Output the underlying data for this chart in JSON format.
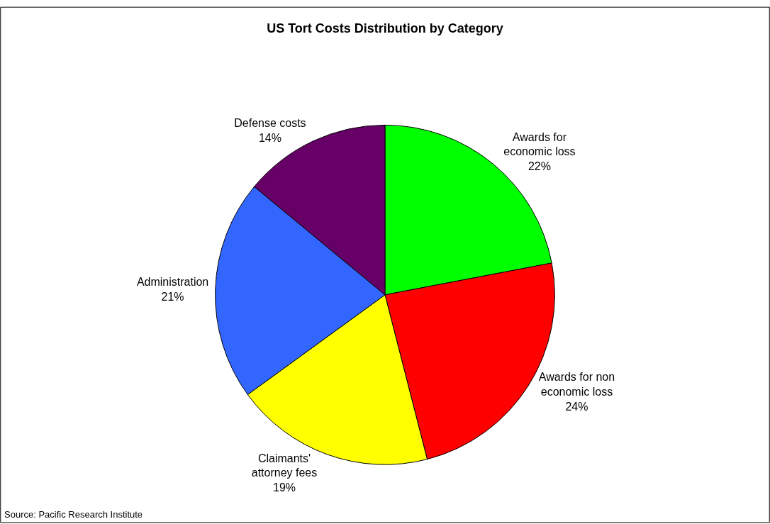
{
  "chart_data": {
    "type": "pie",
    "title": "US Tort Costs Distribution by Category",
    "categories": [
      "Awards for economic loss",
      "Awards for non economic loss",
      "Claimants' attorney fees",
      "Administration",
      "Defense costs"
    ],
    "values": [
      22,
      24,
      19,
      21,
      14
    ],
    "value_labels": [
      "22%",
      "24%",
      "19%",
      "21%",
      "14%"
    ],
    "colors": [
      "#00ff00",
      "#ff0000",
      "#ffff00",
      "#3366ff",
      "#660066"
    ],
    "annotations": [
      "Source: Pacific Research Institute"
    ],
    "legend": false
  }
}
